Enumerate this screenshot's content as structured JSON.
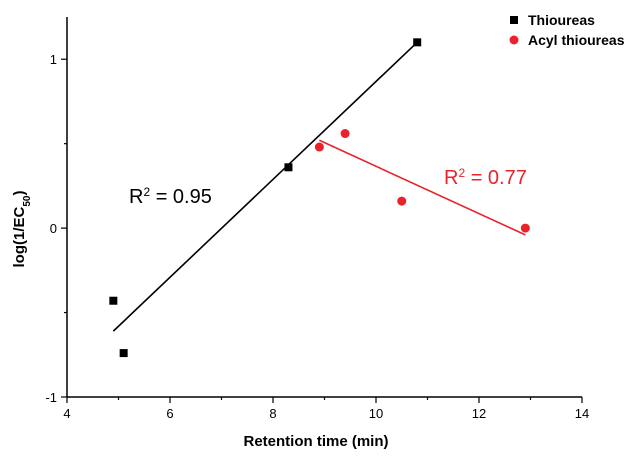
{
  "chart_data": {
    "type": "scatter",
    "xlabel": "Retention time (min)",
    "ylabel_main": "log(1/EC",
    "ylabel_sub": "50",
    "ylabel_tail": ")",
    "xlim": [
      4,
      14
    ],
    "ylim": [
      -1,
      1.25
    ],
    "x_ticks": [
      4,
      6,
      8,
      10,
      12,
      14
    ],
    "y_ticks": [
      -1,
      0,
      1
    ],
    "legend_position": "top-right",
    "series": [
      {
        "name": "Thioureas",
        "marker": "square",
        "color": "#000000",
        "x": [
          4.9,
          5.1,
          8.3,
          10.8
        ],
        "y": [
          -0.43,
          -0.74,
          0.36,
          1.1
        ],
        "fit_line": {
          "x": [
            4.9,
            10.8
          ],
          "y": [
            -0.61,
            1.1
          ]
        },
        "annotation": {
          "prefix": "R",
          "sup": "2",
          "suffix": " = 0.95",
          "color": "#000000"
        }
      },
      {
        "name": "Acyl thioureas",
        "marker": "circle",
        "color": "#e8232a",
        "x": [
          8.9,
          9.4,
          10.5,
          12.9
        ],
        "y": [
          0.48,
          0.56,
          0.16,
          0.0
        ],
        "fit_line": {
          "x": [
            8.9,
            12.9
          ],
          "y": [
            0.52,
            -0.04
          ]
        },
        "annotation": {
          "prefix": "R",
          "sup": "2",
          "suffix": " = 0.77",
          "color": "#e8232a"
        }
      }
    ]
  }
}
